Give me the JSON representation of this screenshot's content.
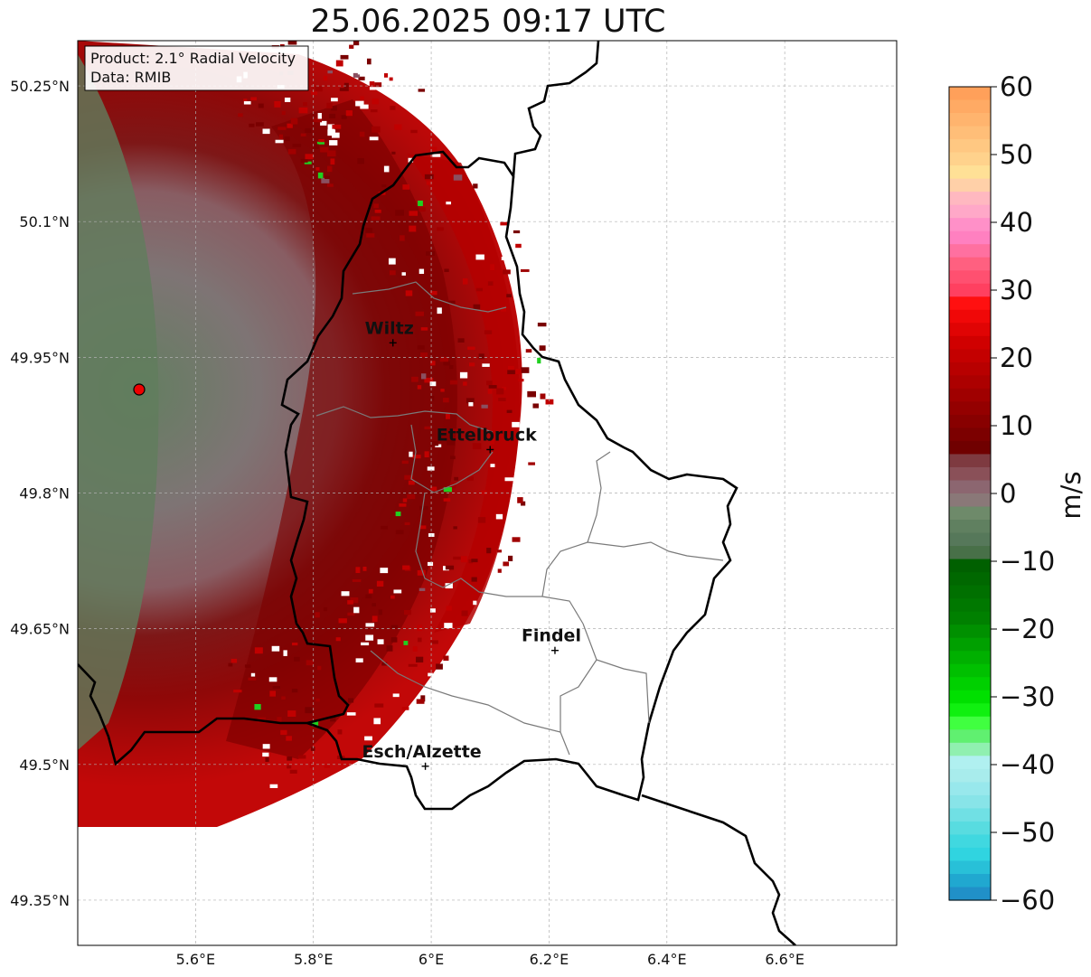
{
  "title": "25.06.2025 09:17 UTC",
  "info_box": {
    "product": "Product: 2.1° Radial Velocity",
    "data": "Data: RMIB"
  },
  "map": {
    "lat_ticks": [
      {
        "value": 50.25,
        "label": "50.25°N"
      },
      {
        "value": 50.1,
        "label": "50.1°N"
      },
      {
        "value": 49.95,
        "label": "49.95°N"
      },
      {
        "value": 49.8,
        "label": "49.8°N"
      },
      {
        "value": 49.65,
        "label": "49.65°N"
      },
      {
        "value": 49.5,
        "label": "49.5°N"
      },
      {
        "value": 49.35,
        "label": "49.35°N"
      }
    ],
    "lon_ticks": [
      {
        "value": 5.6,
        "label": "5.6°E"
      },
      {
        "value": 5.8,
        "label": "5.8°E"
      },
      {
        "value": 6.0,
        "label": "6°E"
      },
      {
        "value": 6.2,
        "label": "6.2°E"
      },
      {
        "value": 6.4,
        "label": "6.4°E"
      },
      {
        "value": 6.6,
        "label": "6.6°E"
      }
    ],
    "extent": {
      "lon_min": 5.4,
      "lon_max": 6.79,
      "lat_min": 49.3,
      "lat_max": 50.3
    },
    "cities": [
      {
        "name": "Wiltz",
        "lon": 5.935,
        "lat": 49.966
      },
      {
        "name": "Ettelbruck",
        "lon": 6.1,
        "lat": 49.848
      },
      {
        "name": "Findel",
        "lon": 6.21,
        "lat": 49.626
      },
      {
        "name": "Esch/Alzette",
        "lon": 5.99,
        "lat": 49.498
      }
    ],
    "radar_site": {
      "lon": 5.505,
      "lat": 49.915
    }
  },
  "colorbar": {
    "label": "m/s",
    "ticks": [
      60,
      50,
      40,
      30,
      20,
      10,
      0,
      -10,
      -20,
      -30,
      -40,
      -50,
      -60
    ],
    "tick_labels": [
      "60",
      "50",
      "40",
      "30",
      "20",
      "10",
      "0",
      "−10",
      "−20",
      "−30",
      "−40",
      "−50",
      "−60"
    ],
    "colors_top_to_bottom": [
      "#ffa05a",
      "#ffaa64",
      "#ffb46e",
      "#ffbe78",
      "#ffc882",
      "#ffd28c",
      "#ffe096",
      "#ffd0a8",
      "#ffb8c0",
      "#ffa8c8",
      "#ff90c8",
      "#ff80c0",
      "#ff70a0",
      "#ff6080",
      "#ff5070",
      "#ff4060",
      "#ff1010",
      "#f00808",
      "#e00404",
      "#d00000",
      "#c40000",
      "#b80000",
      "#ac0000",
      "#a00000",
      "#940000",
      "#880000",
      "#7c0000",
      "#700000",
      "#7e3a40",
      "#8a5058",
      "#8c6670",
      "#8a7878",
      "#6e8a6a",
      "#608060",
      "#56785a",
      "#487048",
      "#006000",
      "#006800",
      "#007000",
      "#007800",
      "#008000",
      "#009000",
      "#00a000",
      "#00b000",
      "#00c000",
      "#00d000",
      "#00e000",
      "#10f010",
      "#40ff40",
      "#60f070",
      "#90f0b0",
      "#b0f0f0",
      "#a8ecec",
      "#98e8ec",
      "#88e4e8",
      "#70e0e4",
      "#58dce0",
      "#40d8e0",
      "#30d4e0",
      "#28c0d8",
      "#20a8d0",
      "#2090c8"
    ]
  }
}
